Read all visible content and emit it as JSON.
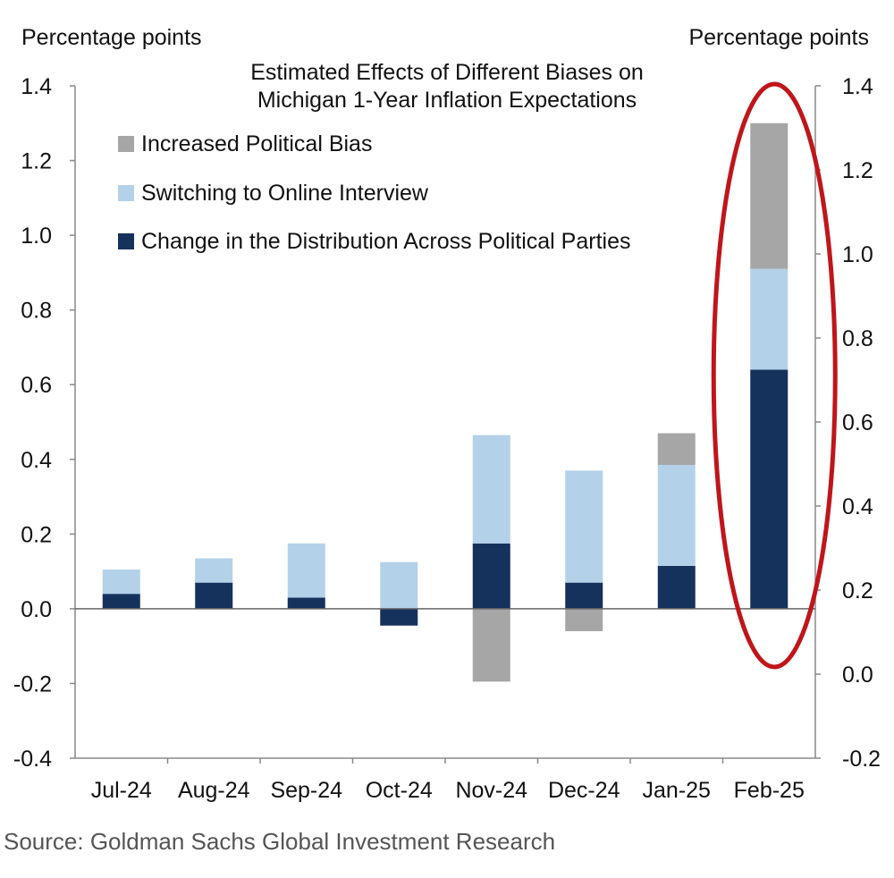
{
  "colors": {
    "political_bias": "#a6a6a6",
    "online_interview": "#b4d1ea",
    "party_distribution": "#14325c",
    "highlight": "#c0151a"
  },
  "chart_data": {
    "type": "bar",
    "stacked": true,
    "title": "Estimated Effects of Different Biases on Michigan 1-Year Inflation Expectations",
    "title_lines": [
      "Estimated Effects of Different  Biases on",
      "Michigan 1-Year Inflation Expectations"
    ],
    "ylabel_left": "Percentage  points",
    "ylabel_right": "Percentage  points",
    "ylim_left": [
      -0.4,
      1.4
    ],
    "yticks_left": [
      "1.4",
      "1.2",
      "1.0",
      "0.8",
      "0.6",
      "0.4",
      "0.2",
      "0.0",
      "-0.2",
      "-0.4"
    ],
    "ylim_right": [
      -0.2,
      1.4
    ],
    "yticks_right": [
      "1.4",
      "1.2",
      "1.0",
      "0.8",
      "0.6",
      "0.4",
      "0.2",
      "0.0",
      "-0.2"
    ],
    "grid": false,
    "legend_position": "top-left",
    "categories": [
      "Jul-24",
      "Aug-24",
      "Sep-24",
      "Oct-24",
      "Nov-24",
      "Dec-24",
      "Jan-25",
      "Feb-25"
    ],
    "series": [
      {
        "name": "Change in the Distribution Across Political Parties",
        "values": [
          0.04,
          0.07,
          0.03,
          -0.045,
          0.175,
          0.07,
          0.115,
          0.64
        ]
      },
      {
        "name": "Switching to Online Interview",
        "values": [
          0.065,
          0.065,
          0.145,
          0.125,
          0.29,
          0.3,
          0.27,
          0.27
        ]
      },
      {
        "name": "Increased Political Bias",
        "values": [
          0,
          0,
          0,
          0,
          -0.195,
          -0.06,
          0.085,
          0.39
        ]
      }
    ],
    "legend_order": [
      "Increased Political Bias",
      "Switching to Online Interview",
      "Change in the Distribution Across Political Parties"
    ],
    "annotation": "red ellipse highlighting Feb-25"
  },
  "source": "Source: Goldman Sachs Global Investment Research"
}
